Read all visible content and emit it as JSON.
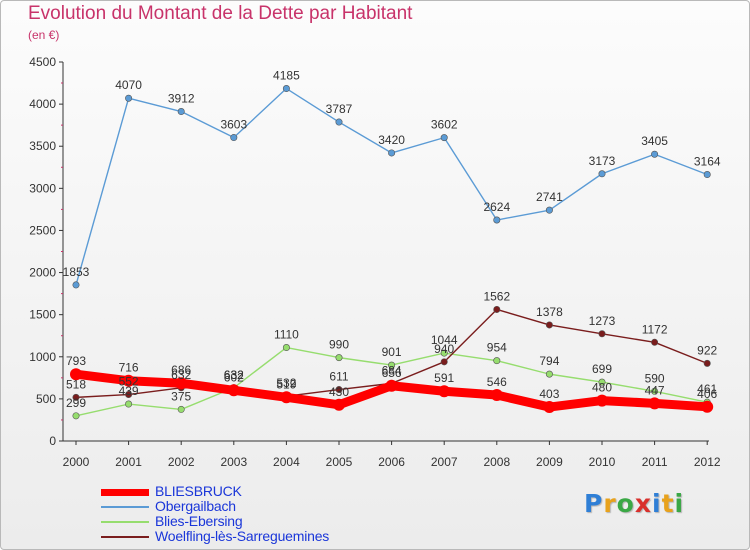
{
  "title": "Evolution du Montant de la Dette par Habitant",
  "subtitle": "(en €)",
  "logo": {
    "letters": [
      "P",
      "r",
      "o",
      "x",
      "i",
      "t",
      "i"
    ],
    "colors": [
      "#2f7fd6",
      "#e8a21c",
      "#3aa845",
      "#d9302c",
      "#2f7fd6",
      "#e8a21c",
      "#3aa845"
    ]
  },
  "chart_data": {
    "type": "line",
    "categories": [
      "2000",
      "2001",
      "2002",
      "2003",
      "2004",
      "2005",
      "2006",
      "2007",
      "2008",
      "2009",
      "2010",
      "2011",
      "2012"
    ],
    "ylim": [
      0,
      4500
    ],
    "yticks": [
      "0",
      "500",
      "1000",
      "1500",
      "2000",
      "2500",
      "3000",
      "3500",
      "4000",
      "4500"
    ],
    "grid": false,
    "legend_position": "bottom-left",
    "series": [
      {
        "name": "BLIESBRUCK",
        "color": "#ff0000",
        "values": [
          793,
          716,
          686,
          602,
          519,
          430,
          656,
          591,
          546,
          403,
          480,
          447,
          406
        ],
        "labels": [
          "793",
          "716",
          "686",
          "602",
          "519",
          "430",
          "656",
          "591",
          "546",
          "403",
          "480",
          "447",
          "406"
        ]
      },
      {
        "name": "Obergailbach",
        "color": "#5b9bd5",
        "values": [
          1853,
          4070,
          3912,
          3603,
          4185,
          3787,
          3420,
          3602,
          2624,
          2741,
          3173,
          3405,
          3164
        ],
        "labels": [
          "1853",
          "4070",
          "3912",
          "3603",
          "4185",
          "3787",
          "3420",
          "3602",
          "2624",
          "2741",
          "3173",
          "3405",
          "3164"
        ]
      },
      {
        "name": "Blies-Ebersing",
        "color": "#96dd6e",
        "values": [
          299,
          439,
          375,
          632,
          1110,
          990,
          901,
          1044,
          954,
          794,
          699,
          590,
          461
        ],
        "labels": [
          "299",
          "439",
          "375",
          "632",
          "1110",
          "990",
          "901",
          "1044",
          "954",
          "794",
          "699",
          "590",
          "461"
        ]
      },
      {
        "name": "Woelfling-lès-Sarreguemines",
        "color": "#7a1d1d",
        "values": [
          518,
          552,
          632,
          632,
          532,
          611,
          684,
          940,
          1562,
          1378,
          1273,
          1172,
          922
        ],
        "labels": [
          "518",
          "552",
          "632",
          "632",
          "532",
          "611",
          "684",
          "940",
          "1562",
          "1378",
          "1273",
          "1172",
          "922"
        ]
      }
    ]
  }
}
